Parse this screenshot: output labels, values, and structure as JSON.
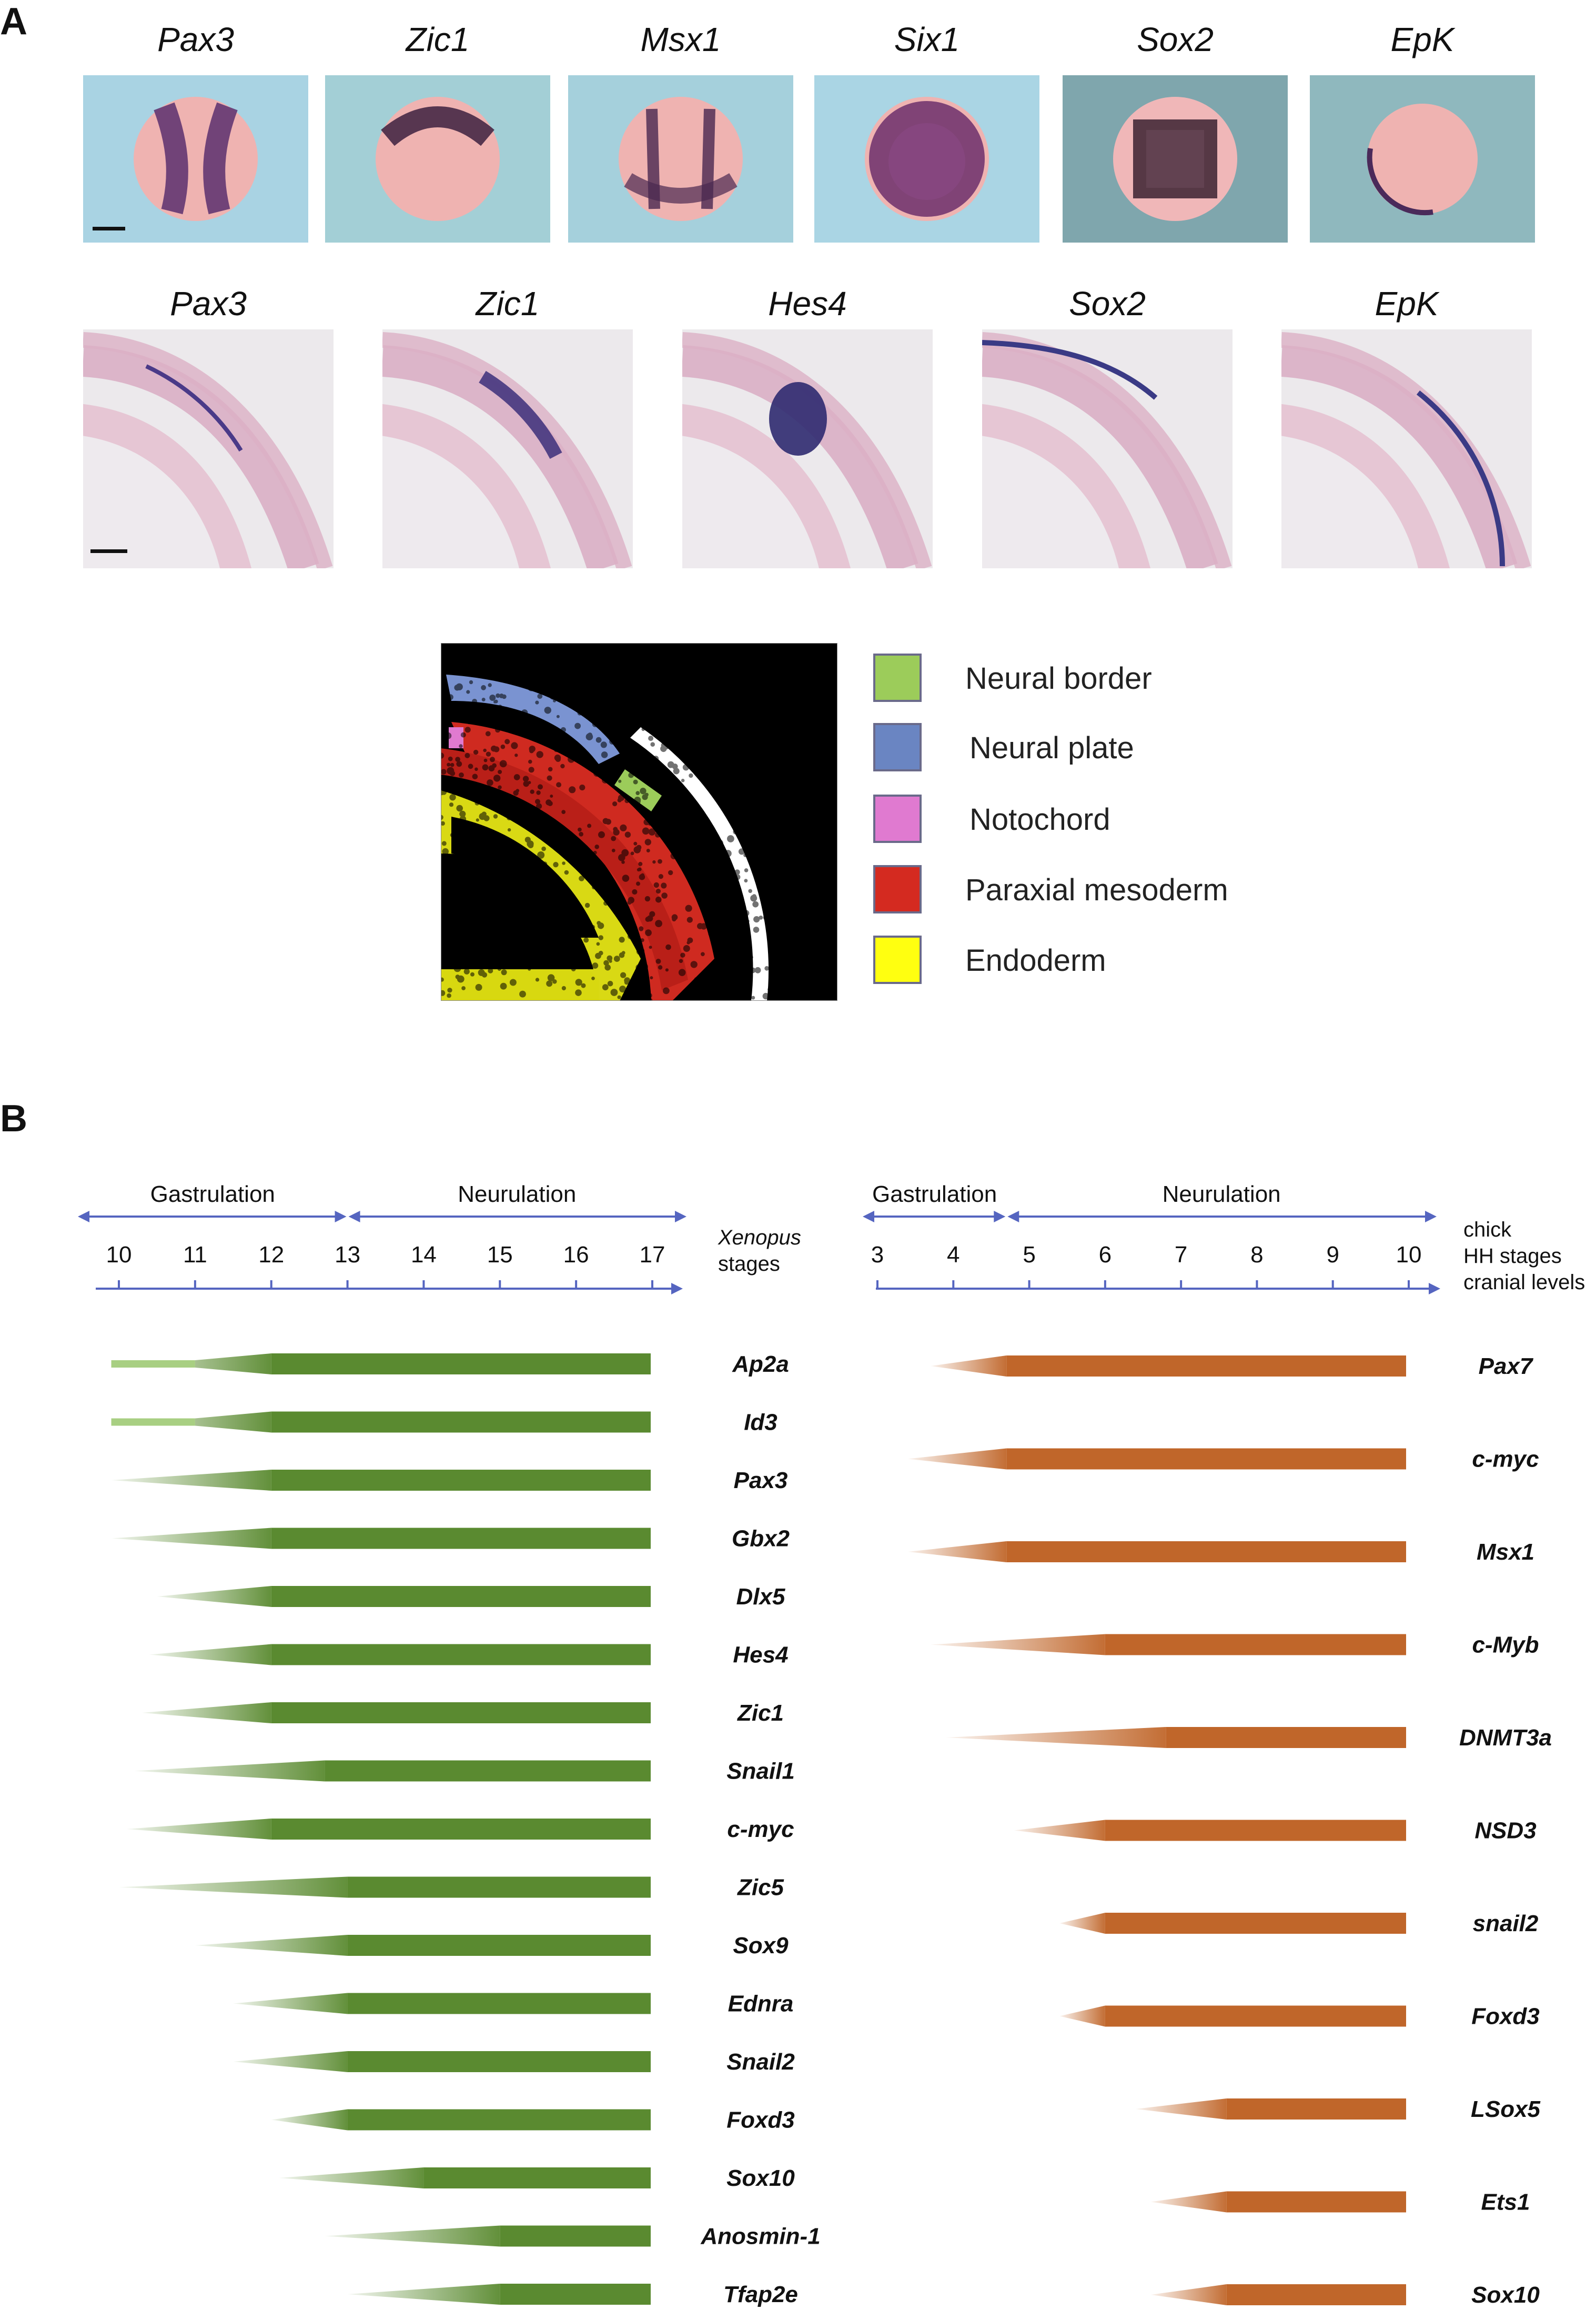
{
  "panel_a": {
    "letter": "A",
    "embryo_row": [
      {
        "gene": "Pax3",
        "bg": "#a9d3e3"
      },
      {
        "gene": "Zic1",
        "bg": "#a3cfd6"
      },
      {
        "gene": "Msx1",
        "bg": "#a5d0dc"
      },
      {
        "gene": "Six1",
        "bg": "#aad5e4"
      },
      {
        "gene": "Sox2",
        "bg": "#7fa6ad"
      },
      {
        "gene": "EpK",
        "bg": "#8fb8be"
      }
    ],
    "section_row": [
      {
        "gene": "Pax3"
      },
      {
        "gene": "Zic1"
      },
      {
        "gene": "Hes4"
      },
      {
        "gene": "Sox2"
      },
      {
        "gene": "EpK"
      }
    ],
    "legend": [
      {
        "label": "Neural border",
        "color": "#9ccc5a"
      },
      {
        "label": "Neural plate",
        "color": "#6a85c2"
      },
      {
        "label": "Notochord",
        "color": "#e07ad0"
      },
      {
        "label": "Paraxial mesoderm",
        "color": "#d42a20"
      },
      {
        "label": "Endoderm",
        "color": "#ffff10"
      }
    ]
  },
  "panel_b": {
    "letter": "B",
    "xenopus": {
      "phase_1": "Gastrulation",
      "phase_2": "Neurulation",
      "stages": [
        "10",
        "11",
        "12",
        "13",
        "14",
        "15",
        "16",
        "17"
      ],
      "species_label_1": "Xenopus",
      "species_label_2": "stages",
      "color": "#5a8a30",
      "light_color": "#a8cf82",
      "genes": [
        {
          "name": "Ap2a",
          "start": 9.9,
          "full": 12.0,
          "light_until": 11.0
        },
        {
          "name": "Id3",
          "start": 9.9,
          "full": 12.0,
          "light_until": 11.0
        },
        {
          "name": "Pax3",
          "start": 9.9,
          "full": 12.0
        },
        {
          "name": "Gbx2",
          "start": 9.9,
          "full": 12.0
        },
        {
          "name": "Dlx5",
          "start": 10.5,
          "full": 12.0
        },
        {
          "name": "Hes4",
          "start": 10.4,
          "full": 12.0
        },
        {
          "name": "Zic1",
          "start": 10.3,
          "full": 12.0
        },
        {
          "name": "Snail1",
          "start": 10.2,
          "full": 12.7
        },
        {
          "name": "c-myc",
          "start": 10.1,
          "full": 12.0
        },
        {
          "name": "Zic5",
          "start": 10.0,
          "full": 13.0
        },
        {
          "name": "Sox9",
          "start": 11.0,
          "full": 13.0
        },
        {
          "name": "Ednra",
          "start": 11.5,
          "full": 13.0
        },
        {
          "name": "Snail2",
          "start": 11.5,
          "full": 13.0
        },
        {
          "name": "Foxd3",
          "start": 12.0,
          "full": 13.0
        },
        {
          "name": "Sox10",
          "start": 12.1,
          "full": 14.0
        },
        {
          "name": "Anosmin-1",
          "start": 12.7,
          "full": 15.0
        },
        {
          "name": "Tfap2e",
          "start": 13.0,
          "full": 15.0
        }
      ]
    },
    "chick": {
      "phase_1": "Gastrulation",
      "phase_2": "Neurulation",
      "stages": [
        "3",
        "4",
        "5",
        "6",
        "7",
        "8",
        "9",
        "10"
      ],
      "species_label_1": "chick",
      "species_label_2": "HH stages",
      "species_label_3": "cranial levels",
      "color": "#c0662a",
      "genes": [
        {
          "name": "Pax7",
          "start": 3.7,
          "full": 4.7
        },
        {
          "name": "c-myc",
          "start": 3.4,
          "full": 4.7
        },
        {
          "name": "Msx1",
          "start": 3.4,
          "full": 4.7
        },
        {
          "name": "c-Myb",
          "start": 3.7,
          "full": 6.0
        },
        {
          "name": "DNMT3a",
          "start": 3.9,
          "full": 6.8
        },
        {
          "name": "NSD3",
          "start": 4.8,
          "full": 6.0
        },
        {
          "name": "snail2",
          "start": 5.4,
          "full": 6.0
        },
        {
          "name": "Foxd3",
          "start": 5.4,
          "full": 6.0
        },
        {
          "name": "LSox5",
          "start": 6.4,
          "full": 7.6
        },
        {
          "name": "Ets1",
          "start": 6.6,
          "full": 7.6
        },
        {
          "name": "Sox10",
          "start": 6.6,
          "full": 7.6
        }
      ]
    }
  }
}
